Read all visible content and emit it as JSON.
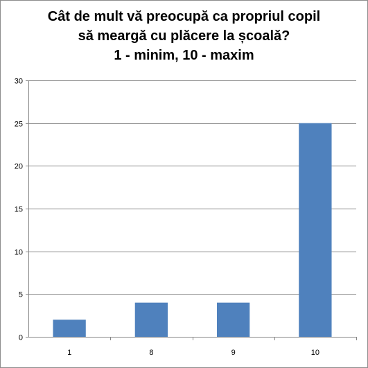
{
  "chart_data": {
    "type": "bar",
    "title_lines": [
      "Cât de mult vă preocupă ca propriul copil",
      "să meargă cu plăcere la școală?",
      "1 - minim, 10 - maxim"
    ],
    "categories": [
      "1",
      "8",
      "9",
      "10"
    ],
    "values": [
      2,
      4,
      4,
      25
    ],
    "ylim": [
      0,
      30
    ],
    "yticks": [
      "0",
      "5",
      "10",
      "15",
      "20",
      "25",
      "30"
    ],
    "xlabel": "",
    "ylabel": "",
    "grid": true,
    "legend": "none",
    "bar_color": "#4f81bd",
    "grid_color": "#868686"
  }
}
